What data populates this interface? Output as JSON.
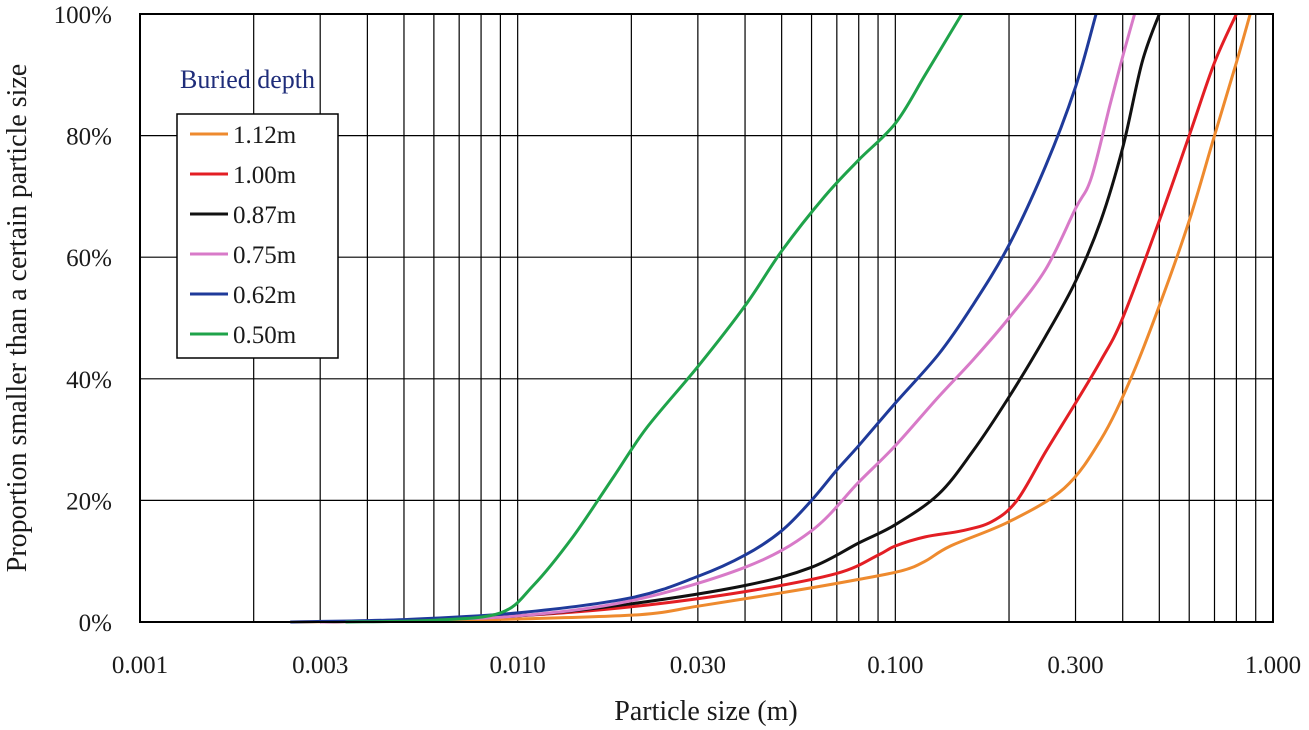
{
  "chart_data": {
    "type": "line",
    "xscale": "log",
    "xlabel": "Particle size (m)",
    "ylabel": "Proportion smaller than a certain particle size",
    "xlim": [
      0.001,
      1.0
    ],
    "ylim": [
      0,
      100
    ],
    "x_ticks": [
      {
        "value": 0.001,
        "label": "0.001"
      },
      {
        "value": 0.003,
        "label": "0.003"
      },
      {
        "value": 0.01,
        "label": "0.010"
      },
      {
        "value": 0.03,
        "label": "0.030"
      },
      {
        "value": 0.1,
        "label": "0.100"
      },
      {
        "value": 0.3,
        "label": "0.300"
      },
      {
        "value": 1.0,
        "label": "1.000"
      }
    ],
    "y_ticks": [
      {
        "value": 0,
        "label": "0%"
      },
      {
        "value": 20,
        "label": "20%"
      },
      {
        "value": 40,
        "label": "40%"
      },
      {
        "value": 60,
        "label": "60%"
      },
      {
        "value": 80,
        "label": "80%"
      },
      {
        "value": 100,
        "label": "100%"
      }
    ],
    "grid": true,
    "legend": {
      "title": "Buried depth",
      "position": "top-left"
    },
    "series": [
      {
        "name": "1.12m",
        "color": "#ee8a2e",
        "x": [
          0.0025,
          0.005,
          0.01,
          0.021,
          0.03,
          0.05,
          0.08,
          0.105,
          0.12,
          0.14,
          0.2,
          0.28,
          0.35,
          0.42,
          0.5,
          0.6,
          0.7,
          0.8,
          0.87
        ],
        "y": [
          0,
          0.2,
          0.5,
          1.2,
          2.6,
          4.8,
          7,
          8.5,
          10,
          12.5,
          16.5,
          22,
          30,
          40,
          52,
          66,
          80,
          92,
          100
        ]
      },
      {
        "name": "1.00m",
        "color": "#e31e24",
        "x": [
          0.003,
          0.005,
          0.01,
          0.02,
          0.04,
          0.07,
          0.09,
          0.1,
          0.12,
          0.15,
          0.18,
          0.21,
          0.25,
          0.3,
          0.35,
          0.4,
          0.5,
          0.6,
          0.7,
          0.8
        ],
        "y": [
          0,
          0.3,
          1,
          2.5,
          5,
          8,
          11,
          12.5,
          14,
          15,
          16.5,
          20,
          28,
          36,
          43,
          50,
          66,
          80,
          92,
          100
        ]
      },
      {
        "name": "0.87m",
        "color": "#111111",
        "x": [
          0.003,
          0.005,
          0.01,
          0.02,
          0.04,
          0.06,
          0.08,
          0.1,
          0.13,
          0.16,
          0.2,
          0.25,
          0.3,
          0.35,
          0.4,
          0.45,
          0.5
        ],
        "y": [
          0,
          0.3,
          1,
          3,
          6,
          9,
          13,
          16,
          21,
          28,
          37,
          47,
          56,
          66,
          78,
          92,
          100
        ]
      },
      {
        "name": "0.75m",
        "color": "#d87ac8",
        "x": [
          0.003,
          0.005,
          0.01,
          0.02,
          0.04,
          0.06,
          0.08,
          0.1,
          0.13,
          0.16,
          0.2,
          0.25,
          0.3,
          0.33,
          0.37,
          0.4,
          0.43
        ],
        "y": [
          0,
          0.3,
          1,
          3.5,
          9,
          15,
          23,
          29,
          37,
          43,
          50,
          58,
          68,
          73,
          85,
          93,
          100
        ]
      },
      {
        "name": "0.62m",
        "color": "#1f3a9a",
        "x": [
          0.0025,
          0.005,
          0.01,
          0.02,
          0.03,
          0.04,
          0.05,
          0.06,
          0.07,
          0.08,
          0.1,
          0.13,
          0.16,
          0.2,
          0.25,
          0.3,
          0.34
        ],
        "y": [
          0,
          0.4,
          1.5,
          4,
          7.5,
          11,
          15,
          20,
          25,
          29,
          36,
          44,
          52,
          62,
          75,
          88,
          100
        ]
      },
      {
        "name": "0.50m",
        "color": "#1fa34a",
        "x": [
          0.0035,
          0.006,
          0.009,
          0.011,
          0.014,
          0.018,
          0.022,
          0.03,
          0.04,
          0.05,
          0.065,
          0.08,
          0.1,
          0.12,
          0.15
        ],
        "y": [
          0,
          0.3,
          1.5,
          6,
          14,
          24,
          32,
          42,
          52,
          61,
          70,
          76,
          82,
          90,
          100
        ]
      }
    ]
  }
}
